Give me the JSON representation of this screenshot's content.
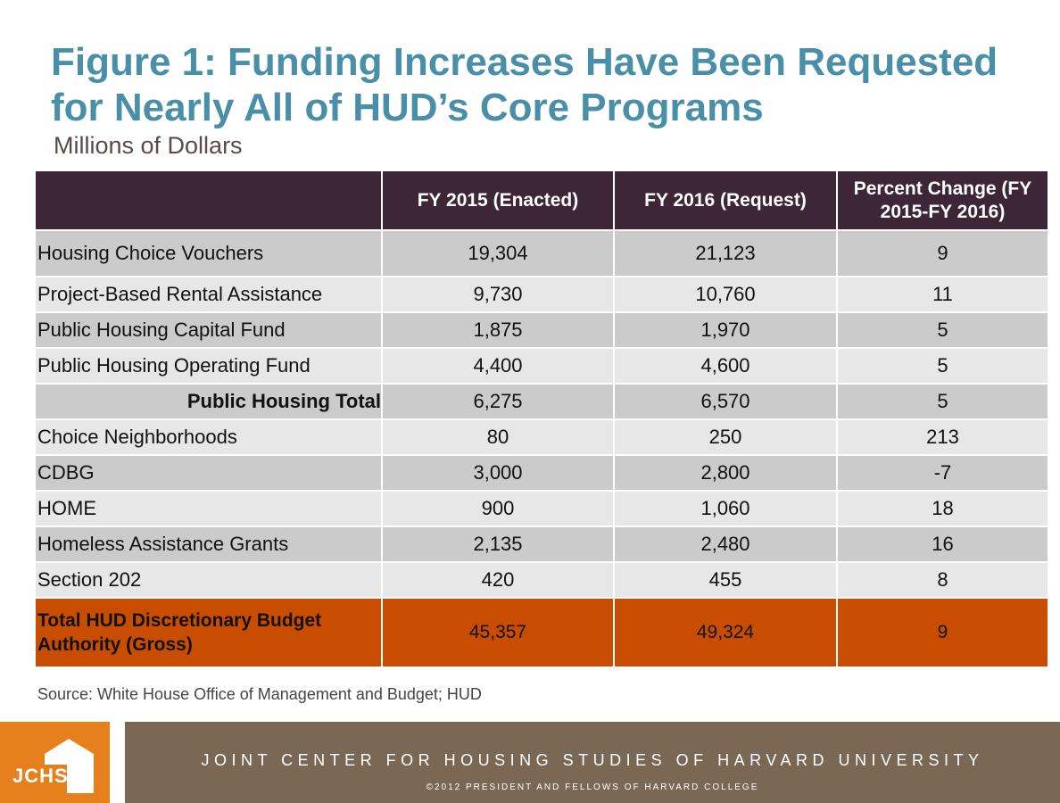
{
  "title": "Figure 1: Funding Increases Have Been Requested for Nearly All of HUD’s Core Programs",
  "subtitle": "Millions of Dollars",
  "table": {
    "headers": [
      "",
      "FY 2015 (Enacted)",
      "FY 2016 (Request)",
      "Percent Change (FY 2015-FY 2016)"
    ],
    "rows": [
      [
        "Housing Choice Vouchers",
        "19,304",
        "21,123",
        "9"
      ],
      [
        "Project-Based Rental Assistance",
        "9,730",
        "10,760",
        "11"
      ],
      [
        "Public Housing Capital Fund",
        "1,875",
        "1,970",
        "5"
      ],
      [
        "Public Housing Operating Fund",
        "4,400",
        "4,600",
        "5"
      ],
      [
        "Public Housing Total",
        "6,275",
        "6,570",
        "5"
      ],
      [
        "Choice Neighborhoods",
        "80",
        "250",
        "213"
      ],
      [
        "CDBG",
        "3,000",
        "2,800",
        "-7"
      ],
      [
        "HOME",
        "900",
        "1,060",
        "18"
      ],
      [
        "Homeless Assistance Grants",
        "2,135",
        "2,480",
        "16"
      ],
      [
        "Section 202",
        "420",
        "455",
        "8"
      ]
    ],
    "total": [
      "Total HUD Discretionary  Budget Authority (Gross)",
      "45,357",
      "49,324",
      "9"
    ]
  },
  "source": "Source: White House Office of Management and Budget; HUD",
  "footer": {
    "logo_text": "JCHS",
    "org": "JOINT CENTER FOR HOUSING STUDIES OF HARVARD UNIVERSITY",
    "copyright": "©2012 PRESIDENT AND FELLOWS OF HARVARD COLLEGE"
  },
  "colors": {
    "title": "#4a8fa8",
    "header": "#3e2639",
    "total": "#c84d00",
    "logo": "#e5801c",
    "band": "#7a6855"
  }
}
